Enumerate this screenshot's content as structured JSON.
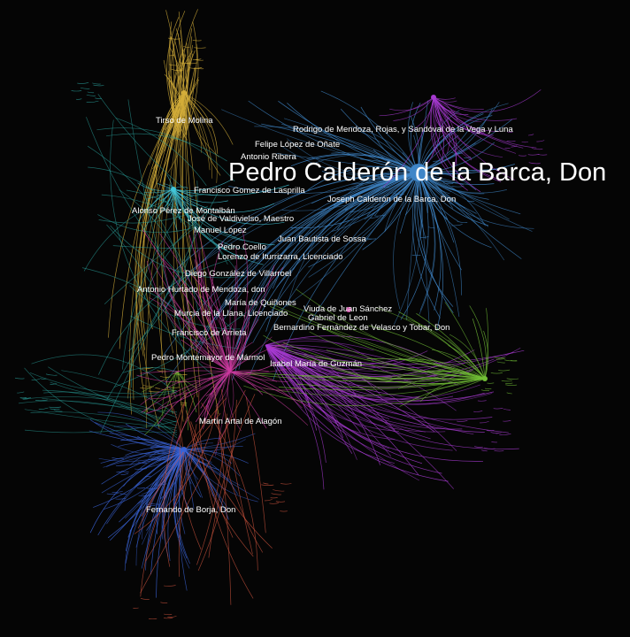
{
  "colors": {
    "background": "#050505",
    "label": "#ffffff",
    "blue_cluster": "#3f86c8",
    "gold_cluster": "#d4ae3a",
    "purple_cluster": "#a63ad0",
    "green_cluster": "#72bf36",
    "teal_cluster": "#2aa5a0",
    "royal_blue_cluster": "#3a64d8",
    "red_cluster": "#d2553e",
    "magenta_cluster": "#cc3aa0",
    "cyan_cluster": "#42c6d8"
  },
  "network": {
    "main_label": "Pedro Calderón de la Barca, Don",
    "labels": [
      "Tirso de Molina",
      "Rodrigo de Mendoza, Rojas, y Sandóval de la Vega y Luna",
      "Felipe López de Oñate",
      "Antonio Ribera",
      "Francisco Gomez de Lasprilla",
      "Joseph Calderón de la Barca, Don",
      "Alonso Pérez de Montalbán",
      "José de Valdivielso, Maestro",
      "Manuel López",
      "Juan Bautista de Sossa",
      "Pedro Coello",
      "Lorenzo de Iturrizarra, Licenciado",
      "Diego González de Villarroel",
      "Antonio Hurtado de Mendoza, don",
      "María de Quiñones",
      "Viuda de Juan Sánchez",
      "Murcia de la Llana, Licenciado",
      "Gabriel de Leon",
      "Bernardino Fernández de Velasco y Tobar, Don",
      "Francisco de Arrieta",
      "Pedro Montemayor de Mármol",
      "Isabel María de Guzmán",
      "Martín Artal de Alagón",
      "Fernando de Borja, Don"
    ]
  }
}
